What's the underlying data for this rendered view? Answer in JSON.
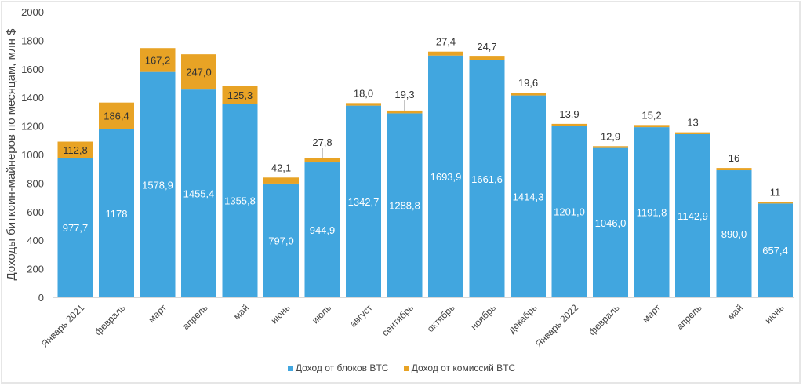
{
  "chart_data": {
    "type": "bar",
    "stacked": true,
    "title": "",
    "xlabel": "",
    "ylabel": "Доходы биткоин-майнеров по месяцам, млн $",
    "ylim": [
      0,
      2000
    ],
    "yticks": [
      0,
      200,
      400,
      600,
      800,
      1000,
      1200,
      1400,
      1600,
      1800,
      2000
    ],
    "grid": false,
    "legend_position": "bottom",
    "categories": [
      "Январь 2021",
      "февраль",
      "март",
      "апрель",
      "май",
      "июнь",
      "июль",
      "август",
      "сентябрь",
      "октябрь",
      "ноябрь",
      "декабрь",
      "Январь 2022",
      "февраль",
      "март",
      "апрель",
      "май",
      "июнь"
    ],
    "series": [
      {
        "name": "Доход от блоков BTC",
        "color": "#41a6df",
        "values": [
          977.7,
          1178,
          1578.9,
          1455.4,
          1355.8,
          797.0,
          944.9,
          1342.7,
          1288.8,
          1693.9,
          1661.6,
          1414.3,
          1201.0,
          1046.0,
          1191.8,
          1142.9,
          890.0,
          657.4
        ],
        "labels": [
          "977,7",
          "1178",
          "1578,9",
          "1455,4",
          "1355,8",
          "797,0",
          "944,9",
          "1342,7",
          "1288,8",
          "1693,9",
          "1661,6",
          "1414,3",
          "1201,0",
          "1046,0",
          "1191,8",
          "1142,9",
          "890,0",
          "657,4"
        ]
      },
      {
        "name": "Доход от комиссий BTC",
        "color": "#e8a325",
        "values": [
          112.8,
          186.4,
          167.2,
          247.0,
          125.3,
          42.1,
          27.8,
          18.0,
          19.3,
          27.4,
          24.7,
          19.6,
          13.9,
          12.9,
          15.2,
          13,
          16,
          11
        ],
        "labels": [
          "112,8",
          "186,4",
          "167,2",
          "247,0",
          "125,3",
          "42,1",
          "27,8",
          "18,0",
          "19,3",
          "27,4",
          "24,7",
          "19,6",
          "13,9",
          "12,9",
          "15,2",
          "13",
          "16",
          "11"
        ]
      }
    ]
  }
}
